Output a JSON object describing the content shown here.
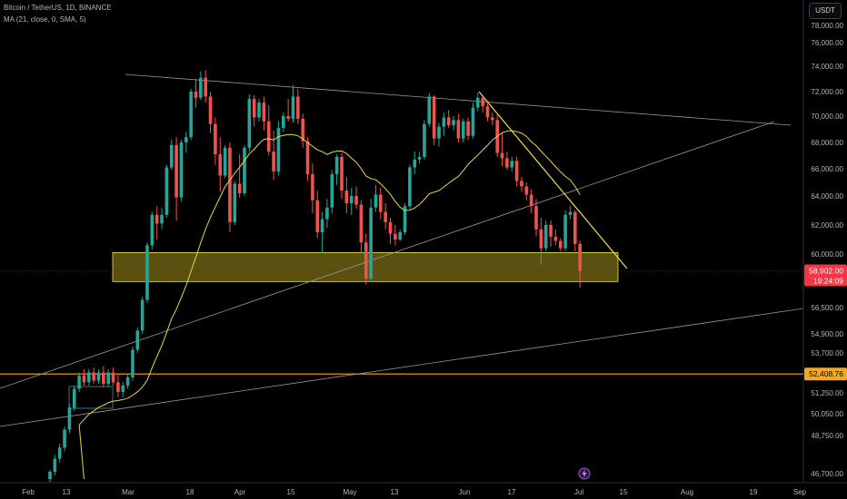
{
  "header": {
    "symbol_line": "Bitcoin / TetherUS, 1D, BINANCE",
    "indicator_line": "MA (21, close, 0, SMA, 5)",
    "currency": "USDT"
  },
  "footer": {
    "lightning_icon": "lightning-icon"
  },
  "colors": {
    "up": "#26a69a",
    "down": "#ef5350",
    "ma": "#e8d44d",
    "trend": "#f0e050",
    "zone": "#b3a020",
    "price_tag": "#f23645",
    "level_tag": "#f5a623",
    "background": "#000000"
  },
  "chart_data": {
    "type": "candlestick",
    "title": "",
    "xlabel": "",
    "ylabel": "",
    "x_ticks": [
      "Feb",
      "13",
      "Mar",
      "18",
      "Apr",
      "15",
      "May",
      "13",
      "Jun",
      "17",
      "Jul",
      "15",
      "Aug",
      "19",
      "Sep"
    ],
    "y_ticks": [
      "78,000.00",
      "76,000.00",
      "74,000.00",
      "72,000.00",
      "70,000.00",
      "68,000.00",
      "66,000.00",
      "64,000.00",
      "62,000.00",
      "60,000.00",
      "56,500.00",
      "54,900.00",
      "53,700.00",
      "51,250.00",
      "50,050.00",
      "48,750.00",
      "46,700.00"
    ],
    "current_price": {
      "value": "58,902.00",
      "countdown": "19:24:09"
    },
    "horizontal_level": {
      "value": "52,408.76"
    },
    "support_zone": {
      "low": 58200,
      "high": 60100
    },
    "candles": [
      {
        "o": 46400,
        "h": 46900,
        "l": 46200,
        "c": 46800
      },
      {
        "o": 46800,
        "h": 47700,
        "l": 46600,
        "c": 47500
      },
      {
        "o": 47500,
        "h": 48300,
        "l": 47300,
        "c": 48100
      },
      {
        "o": 48100,
        "h": 49300,
        "l": 47900,
        "c": 49100
      },
      {
        "o": 49100,
        "h": 50600,
        "l": 48900,
        "c": 50400
      },
      {
        "o": 50400,
        "h": 51700,
        "l": 50200,
        "c": 51500
      },
      {
        "o": 51500,
        "h": 52500,
        "l": 51300,
        "c": 52300
      },
      {
        "o": 52300,
        "h": 52700,
        "l": 51700,
        "c": 51900
      },
      {
        "o": 51900,
        "h": 52700,
        "l": 51700,
        "c": 52500
      },
      {
        "o": 52500,
        "h": 52800,
        "l": 51800,
        "c": 52000
      },
      {
        "o": 52000,
        "h": 52700,
        "l": 51800,
        "c": 52500
      },
      {
        "o": 52500,
        "h": 52900,
        "l": 51600,
        "c": 51800
      },
      {
        "o": 51800,
        "h": 52700,
        "l": 51600,
        "c": 52500
      },
      {
        "o": 52500,
        "h": 52800,
        "l": 51700,
        "c": 51900
      },
      {
        "o": 51900,
        "h": 52400,
        "l": 51000,
        "c": 51300
      },
      {
        "o": 51300,
        "h": 51900,
        "l": 51000,
        "c": 51700
      },
      {
        "o": 51700,
        "h": 52400,
        "l": 51500,
        "c": 52200
      },
      {
        "o": 52200,
        "h": 54100,
        "l": 52000,
        "c": 53900
      },
      {
        "o": 53900,
        "h": 55300,
        "l": 53700,
        "c": 55100
      },
      {
        "o": 55100,
        "h": 57200,
        "l": 54900,
        "c": 57000
      },
      {
        "o": 57000,
        "h": 60800,
        "l": 56800,
        "c": 60600
      },
      {
        "o": 60600,
        "h": 62900,
        "l": 60300,
        "c": 62700
      },
      {
        "o": 62700,
        "h": 63300,
        "l": 61000,
        "c": 62100
      },
      {
        "o": 62100,
        "h": 63200,
        "l": 61700,
        "c": 62700
      },
      {
        "o": 62700,
        "h": 66300,
        "l": 62500,
        "c": 66100
      },
      {
        "o": 66100,
        "h": 68200,
        "l": 65900,
        "c": 67800
      },
      {
        "o": 67800,
        "h": 68400,
        "l": 62300,
        "c": 63900
      },
      {
        "o": 63900,
        "h": 68200,
        "l": 63600,
        "c": 68000
      },
      {
        "o": 68000,
        "h": 68800,
        "l": 67200,
        "c": 68400
      },
      {
        "o": 68400,
        "h": 72200,
        "l": 68200,
        "c": 72000
      },
      {
        "o": 72000,
        "h": 73000,
        "l": 70700,
        "c": 71500
      },
      {
        "o": 71500,
        "h": 73600,
        "l": 71300,
        "c": 73100
      },
      {
        "o": 73100,
        "h": 73700,
        "l": 71100,
        "c": 71600
      },
      {
        "o": 71600,
        "h": 72000,
        "l": 68700,
        "c": 69400
      },
      {
        "o": 69400,
        "h": 69900,
        "l": 66300,
        "c": 67100
      },
      {
        "o": 67100,
        "h": 68400,
        "l": 64300,
        "c": 65500
      },
      {
        "o": 65500,
        "h": 67800,
        "l": 65300,
        "c": 67600
      },
      {
        "o": 67600,
        "h": 68000,
        "l": 61500,
        "c": 62200
      },
      {
        "o": 62200,
        "h": 65100,
        "l": 62000,
        "c": 64900
      },
      {
        "o": 64900,
        "h": 67100,
        "l": 63900,
        "c": 64200
      },
      {
        "o": 64200,
        "h": 67800,
        "l": 64000,
        "c": 67600
      },
      {
        "o": 67600,
        "h": 71800,
        "l": 67300,
        "c": 71400
      },
      {
        "o": 71400,
        "h": 71700,
        "l": 69200,
        "c": 69900
      },
      {
        "o": 69900,
        "h": 71400,
        "l": 69600,
        "c": 71100
      },
      {
        "o": 71100,
        "h": 71600,
        "l": 68900,
        "c": 69600
      },
      {
        "o": 69600,
        "h": 70900,
        "l": 67000,
        "c": 67300
      },
      {
        "o": 67300,
        "h": 68900,
        "l": 65200,
        "c": 65800
      },
      {
        "o": 65800,
        "h": 69600,
        "l": 65500,
        "c": 69100
      },
      {
        "o": 69100,
        "h": 70300,
        "l": 68800,
        "c": 70000
      },
      {
        "o": 70000,
        "h": 71400,
        "l": 69600,
        "c": 69800
      },
      {
        "o": 69800,
        "h": 72500,
        "l": 69500,
        "c": 71600
      },
      {
        "o": 71600,
        "h": 72200,
        "l": 69400,
        "c": 69800
      },
      {
        "o": 69800,
        "h": 70200,
        "l": 67600,
        "c": 68100
      },
      {
        "o": 68100,
        "h": 68400,
        "l": 65100,
        "c": 65600
      },
      {
        "o": 65600,
        "h": 66400,
        "l": 62800,
        "c": 63700
      },
      {
        "o": 63700,
        "h": 64400,
        "l": 61100,
        "c": 61500
      },
      {
        "o": 61500,
        "h": 62900,
        "l": 60100,
        "c": 62400
      },
      {
        "o": 62400,
        "h": 63800,
        "l": 61800,
        "c": 63200
      },
      {
        "o": 63200,
        "h": 65900,
        "l": 62800,
        "c": 65600
      },
      {
        "o": 65600,
        "h": 67100,
        "l": 64800,
        "c": 66900
      },
      {
        "o": 66900,
        "h": 67200,
        "l": 63800,
        "c": 64400
      },
      {
        "o": 64400,
        "h": 65400,
        "l": 62800,
        "c": 63500
      },
      {
        "o": 63500,
        "h": 64600,
        "l": 62700,
        "c": 64000
      },
      {
        "o": 64000,
        "h": 64700,
        "l": 63100,
        "c": 63400
      },
      {
        "o": 63400,
        "h": 63700,
        "l": 60100,
        "c": 60800
      },
      {
        "o": 60800,
        "h": 61400,
        "l": 58000,
        "c": 58400
      },
      {
        "o": 58400,
        "h": 63800,
        "l": 58200,
        "c": 63200
      },
      {
        "o": 63200,
        "h": 64800,
        "l": 62900,
        "c": 64100
      },
      {
        "o": 64100,
        "h": 64600,
        "l": 62400,
        "c": 62900
      },
      {
        "o": 62900,
        "h": 63500,
        "l": 61700,
        "c": 62200
      },
      {
        "o": 62200,
        "h": 62500,
        "l": 60700,
        "c": 61400
      },
      {
        "o": 61400,
        "h": 62000,
        "l": 60600,
        "c": 61000
      },
      {
        "o": 61000,
        "h": 61700,
        "l": 60900,
        "c": 61500
      },
      {
        "o": 61500,
        "h": 63500,
        "l": 61300,
        "c": 63300
      },
      {
        "o": 63300,
        "h": 66300,
        "l": 63100,
        "c": 66100
      },
      {
        "o": 66100,
        "h": 67300,
        "l": 65600,
        "c": 66700
      },
      {
        "o": 66700,
        "h": 67300,
        "l": 66400,
        "c": 66900
      },
      {
        "o": 66900,
        "h": 69700,
        "l": 66700,
        "c": 69400
      },
      {
        "o": 69400,
        "h": 71900,
        "l": 69200,
        "c": 71600
      },
      {
        "o": 71600,
        "h": 71700,
        "l": 67800,
        "c": 68300
      },
      {
        "o": 68300,
        "h": 69500,
        "l": 67700,
        "c": 69200
      },
      {
        "o": 69200,
        "h": 70300,
        "l": 68500,
        "c": 69900
      },
      {
        "o": 69900,
        "h": 70500,
        "l": 69100,
        "c": 69300
      },
      {
        "o": 69300,
        "h": 70000,
        "l": 68900,
        "c": 69700
      },
      {
        "o": 69700,
        "h": 70200,
        "l": 68000,
        "c": 68300
      },
      {
        "o": 68300,
        "h": 69800,
        "l": 68000,
        "c": 69600
      },
      {
        "o": 69600,
        "h": 69900,
        "l": 68200,
        "c": 68500
      },
      {
        "o": 68500,
        "h": 71100,
        "l": 68300,
        "c": 70700
      },
      {
        "o": 70700,
        "h": 71900,
        "l": 70400,
        "c": 71500
      },
      {
        "o": 71500,
        "h": 71600,
        "l": 70300,
        "c": 70800
      },
      {
        "o": 70800,
        "h": 71300,
        "l": 69600,
        "c": 69900
      },
      {
        "o": 69900,
        "h": 70300,
        "l": 69300,
        "c": 69700
      },
      {
        "o": 69700,
        "h": 70300,
        "l": 66900,
        "c": 67200
      },
      {
        "o": 67200,
        "h": 68700,
        "l": 66200,
        "c": 66800
      },
      {
        "o": 66800,
        "h": 67300,
        "l": 65900,
        "c": 66100
      },
      {
        "o": 66100,
        "h": 66900,
        "l": 65800,
        "c": 66600
      },
      {
        "o": 66600,
        "h": 66900,
        "l": 64700,
        "c": 65100
      },
      {
        "o": 65100,
        "h": 65400,
        "l": 64300,
        "c": 64700
      },
      {
        "o": 64700,
        "h": 65000,
        "l": 63700,
        "c": 64100
      },
      {
        "o": 64100,
        "h": 64500,
        "l": 62800,
        "c": 63300
      },
      {
        "o": 63300,
        "h": 63800,
        "l": 61200,
        "c": 61700
      },
      {
        "o": 61700,
        "h": 62500,
        "l": 59300,
        "c": 60400
      },
      {
        "o": 60400,
        "h": 62300,
        "l": 60200,
        "c": 62000
      },
      {
        "o": 62000,
        "h": 62300,
        "l": 60500,
        "c": 61200
      },
      {
        "o": 61200,
        "h": 61700,
        "l": 60600,
        "c": 60900
      },
      {
        "o": 60900,
        "h": 61100,
        "l": 60200,
        "c": 60400
      },
      {
        "o": 60400,
        "h": 63000,
        "l": 60200,
        "c": 62700
      },
      {
        "o": 62700,
        "h": 63300,
        "l": 62400,
        "c": 62900
      },
      {
        "o": 62900,
        "h": 63000,
        "l": 60200,
        "c": 60700
      },
      {
        "o": 60700,
        "h": 60900,
        "l": 57800,
        "c": 58900
      }
    ]
  }
}
